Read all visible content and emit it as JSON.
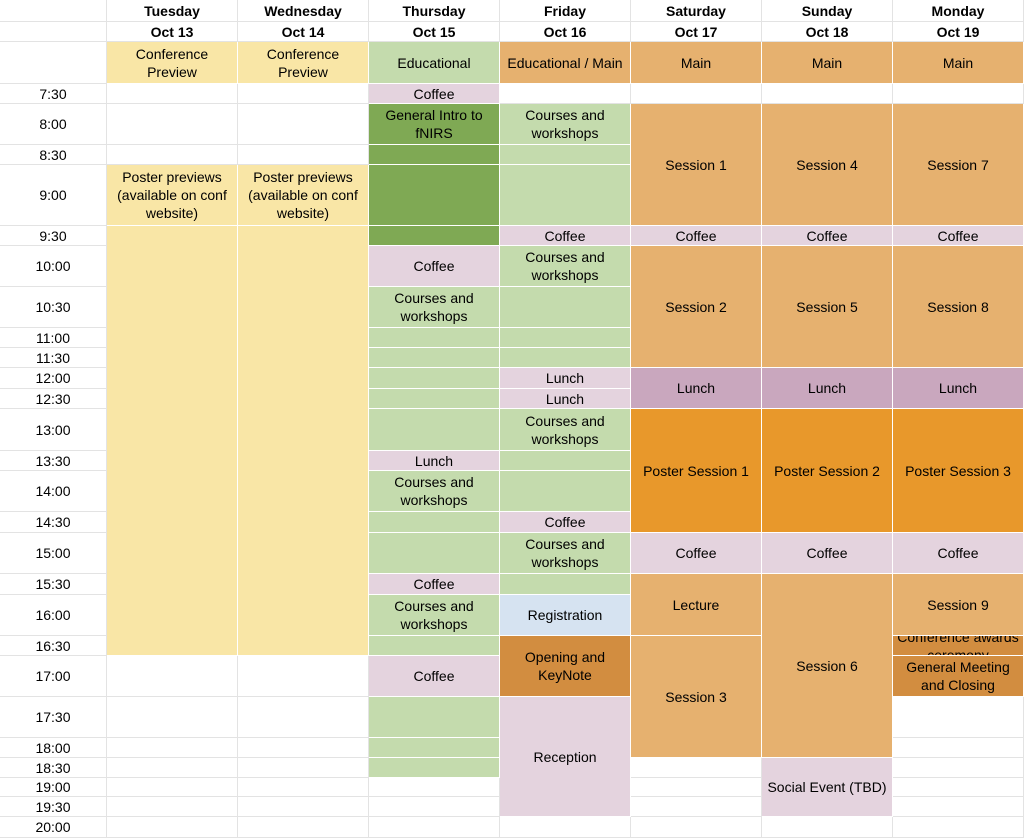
{
  "colors": {
    "yellow": "#f9e6a6",
    "green_light": "#c4dbad",
    "green_dark": "#7fa954",
    "pink": "#e4d3de",
    "orange_main": "#e6b16f",
    "orange_poster": "#e8982b",
    "orange_dark": "#d28d40",
    "purple_lunch": "#c9a7be",
    "blue": "#d6e3f1"
  },
  "days": [
    {
      "name": "Tuesday",
      "date": "Oct 13"
    },
    {
      "name": "Wednesday",
      "date": "Oct 14"
    },
    {
      "name": "Thursday",
      "date": "Oct 15"
    },
    {
      "name": "Friday",
      "date": "Oct 16"
    },
    {
      "name": "Saturday",
      "date": "Oct 17"
    },
    {
      "name": "Sunday",
      "date": "Oct 18"
    },
    {
      "name": "Monday",
      "date": "Oct 19"
    }
  ],
  "times": [
    "7:30",
    "8:00",
    "8:30",
    "9:00",
    "9:30",
    "10:00",
    "10:30",
    "11:00",
    "11:30",
    "12:00",
    "12:30",
    "13:00",
    "13:30",
    "14:00",
    "14:30",
    "15:00",
    "15:30",
    "16:00",
    "16:30",
    "17:00",
    "17:30",
    "18:00",
    "18:30",
    "19:00",
    "19:30",
    "20:00"
  ],
  "events": [
    {
      "day": 0,
      "from": 0,
      "to": 1,
      "label": "Conference Preview",
      "color": "yellow"
    },
    {
      "day": 1,
      "from": 0,
      "to": 1,
      "label": "Conference Preview",
      "color": "yellow"
    },
    {
      "day": 2,
      "from": 0,
      "to": 1,
      "label": "Educational",
      "color": "green_light"
    },
    {
      "day": 3,
      "from": 0,
      "to": 1,
      "label": "Educational / Main",
      "color": "orange_main"
    },
    {
      "day": 4,
      "from": 0,
      "to": 1,
      "label": "Main",
      "color": "orange_main"
    },
    {
      "day": 5,
      "from": 0,
      "to": 1,
      "label": "Main",
      "color": "orange_main"
    },
    {
      "day": 6,
      "from": 0,
      "to": 1,
      "label": "Main",
      "color": "orange_main"
    },
    {
      "day": 0,
      "from": 4,
      "to": 5,
      "label": "Poster previews (available on conf website)",
      "color": "yellow"
    },
    {
      "day": 0,
      "from": 5,
      "to": 20,
      "label": "",
      "color": "yellow"
    },
    {
      "day": 1,
      "from": 4,
      "to": 5,
      "label": "Poster previews (available on conf website)",
      "color": "yellow"
    },
    {
      "day": 1,
      "from": 5,
      "to": 20,
      "label": "",
      "color": "yellow"
    },
    {
      "day": 2,
      "from": 1,
      "to": 2,
      "label": "Coffee",
      "color": "pink"
    },
    {
      "day": 2,
      "from": 2,
      "to": 3,
      "label": "General Intro to fNIRS",
      "color": "green_dark"
    },
    {
      "day": 2,
      "from": 3,
      "to": 4,
      "label": "",
      "color": "green_dark"
    },
    {
      "day": 2,
      "from": 4,
      "to": 5,
      "label": "",
      "color": "green_dark"
    },
    {
      "day": 2,
      "from": 5,
      "to": 6,
      "label": "",
      "color": "green_dark"
    },
    {
      "day": 2,
      "from": 6,
      "to": 7,
      "label": "Coffee",
      "color": "pink"
    },
    {
      "day": 2,
      "from": 7,
      "to": 8,
      "label": "Courses and workshops",
      "color": "green_light"
    },
    {
      "day": 2,
      "from": 8,
      "to": 9,
      "label": "",
      "color": "green_light"
    },
    {
      "day": 2,
      "from": 9,
      "to": 10,
      "label": "",
      "color": "green_light"
    },
    {
      "day": 2,
      "from": 10,
      "to": 11,
      "label": "",
      "color": "green_light"
    },
    {
      "day": 2,
      "from": 11,
      "to": 12,
      "label": "",
      "color": "green_light"
    },
    {
      "day": 2,
      "from": 12,
      "to": 13,
      "label": "",
      "color": "green_light"
    },
    {
      "day": 2,
      "from": 13,
      "to": 14,
      "label": "Lunch",
      "color": "pink"
    },
    {
      "day": 2,
      "from": 14,
      "to": 15,
      "label": "Courses and workshops",
      "color": "green_light"
    },
    {
      "day": 2,
      "from": 15,
      "to": 16,
      "label": "",
      "color": "green_light"
    },
    {
      "day": 2,
      "from": 16,
      "to": 17,
      "label": "",
      "color": "green_light"
    },
    {
      "day": 2,
      "from": 17,
      "to": 18,
      "label": "Coffee",
      "color": "pink"
    },
    {
      "day": 2,
      "from": 18,
      "to": 19,
      "label": "Courses and workshops",
      "color": "green_light"
    },
    {
      "day": 2,
      "from": 19,
      "to": 20,
      "label": "",
      "color": "green_light"
    },
    {
      "day": 2,
      "from": 20,
      "to": 21,
      "label": "Coffee",
      "color": "pink"
    },
    {
      "day": 2,
      "from": 21,
      "to": 22,
      "label": "",
      "color": "green_light"
    },
    {
      "day": 2,
      "from": 22,
      "to": 23,
      "label": "",
      "color": "green_light"
    },
    {
      "day": 2,
      "from": 23,
      "to": 24,
      "label": "",
      "color": "green_light"
    },
    {
      "day": 3,
      "from": 2,
      "to": 3,
      "label": "Courses and workshops",
      "color": "green_light"
    },
    {
      "day": 3,
      "from": 3,
      "to": 4,
      "label": "",
      "color": "green_light"
    },
    {
      "day": 3,
      "from": 4,
      "to": 5,
      "label": "",
      "color": "green_light"
    },
    {
      "day": 3,
      "from": 5,
      "to": 6,
      "label": "Coffee",
      "color": "pink"
    },
    {
      "day": 3,
      "from": 6,
      "to": 7,
      "label": "Courses and workshops",
      "color": "green_light"
    },
    {
      "day": 3,
      "from": 7,
      "to": 8,
      "label": "",
      "color": "green_light"
    },
    {
      "day": 3,
      "from": 8,
      "to": 9,
      "label": "",
      "color": "green_light"
    },
    {
      "day": 3,
      "from": 9,
      "to": 10,
      "label": "",
      "color": "green_light"
    },
    {
      "day": 3,
      "from": 10,
      "to": 11,
      "label": "Lunch",
      "color": "pink"
    },
    {
      "day": 3,
      "from": 11,
      "to": 12,
      "label": "Lunch",
      "color": "pink"
    },
    {
      "day": 3,
      "from": 12,
      "to": 13,
      "label": "Courses and workshops",
      "color": "green_light"
    },
    {
      "day": 3,
      "from": 13,
      "to": 14,
      "label": "",
      "color": "green_light"
    },
    {
      "day": 3,
      "from": 14,
      "to": 15,
      "label": "",
      "color": "green_light"
    },
    {
      "day": 3,
      "from": 15,
      "to": 16,
      "label": "Coffee",
      "color": "pink"
    },
    {
      "day": 3,
      "from": 16,
      "to": 17,
      "label": "Courses and workshops",
      "color": "green_light"
    },
    {
      "day": 3,
      "from": 17,
      "to": 18,
      "label": "",
      "color": "green_light"
    },
    {
      "day": 3,
      "from": 18,
      "to": 19,
      "label": "Registration",
      "color": "blue"
    },
    {
      "day": 3,
      "from": 19,
      "to": 21,
      "label": "Opening and KeyNote",
      "color": "orange_dark"
    },
    {
      "day": 3,
      "from": 21,
      "to": 26,
      "label": "Reception",
      "color": "pink"
    },
    {
      "day": 4,
      "from": 2,
      "to": 5,
      "label": "Session 1",
      "color": "orange_main"
    },
    {
      "day": 4,
      "from": 5,
      "to": 6,
      "label": "Coffee",
      "color": "pink"
    },
    {
      "day": 4,
      "from": 6,
      "to": 10,
      "label": "Session 2",
      "color": "orange_main"
    },
    {
      "day": 4,
      "from": 10,
      "to": 12,
      "label": "Lunch",
      "color": "purple_lunch"
    },
    {
      "day": 4,
      "from": 12,
      "to": 16,
      "label": "Poster Session 1",
      "color": "orange_poster"
    },
    {
      "day": 4,
      "from": 16,
      "to": 17,
      "label": "Coffee",
      "color": "pink"
    },
    {
      "day": 4,
      "from": 17,
      "to": 19,
      "label": "Lecture",
      "color": "orange_main"
    },
    {
      "day": 4,
      "from": 19,
      "to": 23,
      "label": "Session 3",
      "color": "orange_main"
    },
    {
      "day": 5,
      "from": 2,
      "to": 5,
      "label": "Session 4",
      "color": "orange_main"
    },
    {
      "day": 5,
      "from": 5,
      "to": 6,
      "label": "Coffee",
      "color": "pink"
    },
    {
      "day": 5,
      "from": 6,
      "to": 10,
      "label": "Session 5",
      "color": "orange_main"
    },
    {
      "day": 5,
      "from": 10,
      "to": 12,
      "label": "Lunch",
      "color": "purple_lunch"
    },
    {
      "day": 5,
      "from": 12,
      "to": 16,
      "label": "Poster Session 2",
      "color": "orange_poster"
    },
    {
      "day": 5,
      "from": 16,
      "to": 17,
      "label": "Coffee",
      "color": "pink"
    },
    {
      "day": 5,
      "from": 17,
      "to": 23,
      "label": "Session 6",
      "color": "orange_main"
    },
    {
      "day": 5,
      "from": 23,
      "to": 26,
      "label": "Social Event (TBD)",
      "color": "pink"
    },
    {
      "day": 6,
      "from": 2,
      "to": 5,
      "label": "Session 7",
      "color": "orange_main"
    },
    {
      "day": 6,
      "from": 5,
      "to": 6,
      "label": "Coffee",
      "color": "pink"
    },
    {
      "day": 6,
      "from": 6,
      "to": 10,
      "label": "Session 8",
      "color": "orange_main"
    },
    {
      "day": 6,
      "from": 10,
      "to": 12,
      "label": "Lunch",
      "color": "purple_lunch"
    },
    {
      "day": 6,
      "from": 12,
      "to": 16,
      "label": "Poster Session 3",
      "color": "orange_poster"
    },
    {
      "day": 6,
      "from": 16,
      "to": 17,
      "label": "Coffee",
      "color": "pink"
    },
    {
      "day": 6,
      "from": 17,
      "to": 19,
      "label": "Session 9",
      "color": "orange_main"
    },
    {
      "day": 6,
      "from": 19,
      "to": 20,
      "label": "Conference awards ceremony",
      "color": "orange_dark"
    },
    {
      "day": 6,
      "from": 20,
      "to": 21,
      "label": "General Meeting and Closing",
      "color": "orange_dark"
    }
  ]
}
